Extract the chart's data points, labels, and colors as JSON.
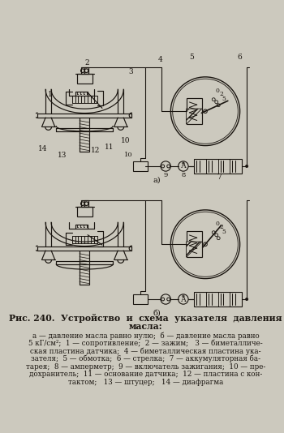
{
  "bg_color": "#ccc9be",
  "line_color": "#1a1510",
  "title": "Рис. 240.  Устройство  и  схема  указателя  давления\n                             масла:",
  "caption_lines": [
    "а — давление масла равно нулю;  б — давление масла равно",
    "5 кГ/см²;  1 — сопротивление;  2 — зажим;   3 — биметалличе-",
    "ская пластина датчика;  4 — биметаллическая пластина ука-",
    "зателя;  5 — обмотка;  6 — стрелка;  7 — аккумуляторная ба-",
    "тарея;  8 — амперметр;  9 — включатель зажигания;  10 — пре-",
    "дохранитель;  11 — основание датчика;  12 — пластина с кон-",
    "тактом;   13 — штуцер;   14 — диафрагма"
  ],
  "label_a": "а)",
  "label_b": "б)"
}
